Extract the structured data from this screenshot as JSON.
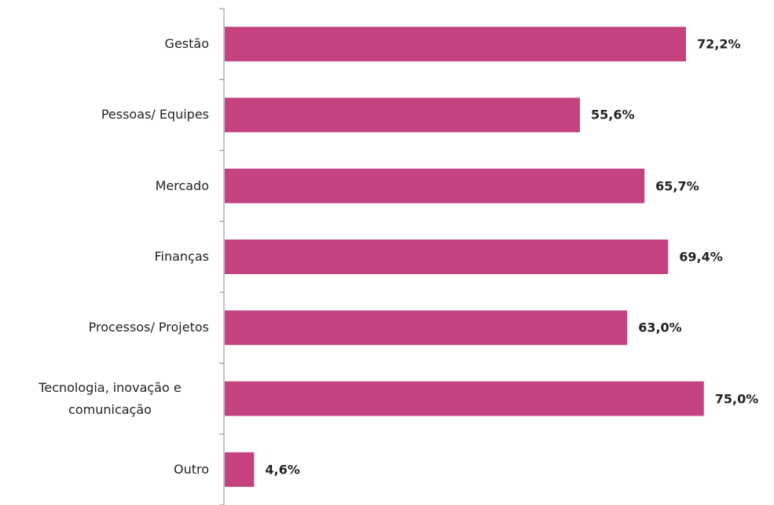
{
  "chart_data": {
    "type": "bar",
    "orientation": "horizontal",
    "categories": [
      "Gestão",
      "Pessoas/ Equipes",
      "Mercado",
      "Finanças",
      "Processos/ Projetos",
      "Tecnologia, inovação e comunicação",
      "Outro"
    ],
    "values": [
      72.2,
      55.6,
      65.7,
      69.4,
      63.0,
      75.0,
      4.6
    ],
    "value_labels": [
      "72,2%",
      "55,6%",
      "65,7%",
      "69,4%",
      "63,0%",
      "75,0%",
      "4,6%"
    ],
    "color": "#c4427f"
  }
}
